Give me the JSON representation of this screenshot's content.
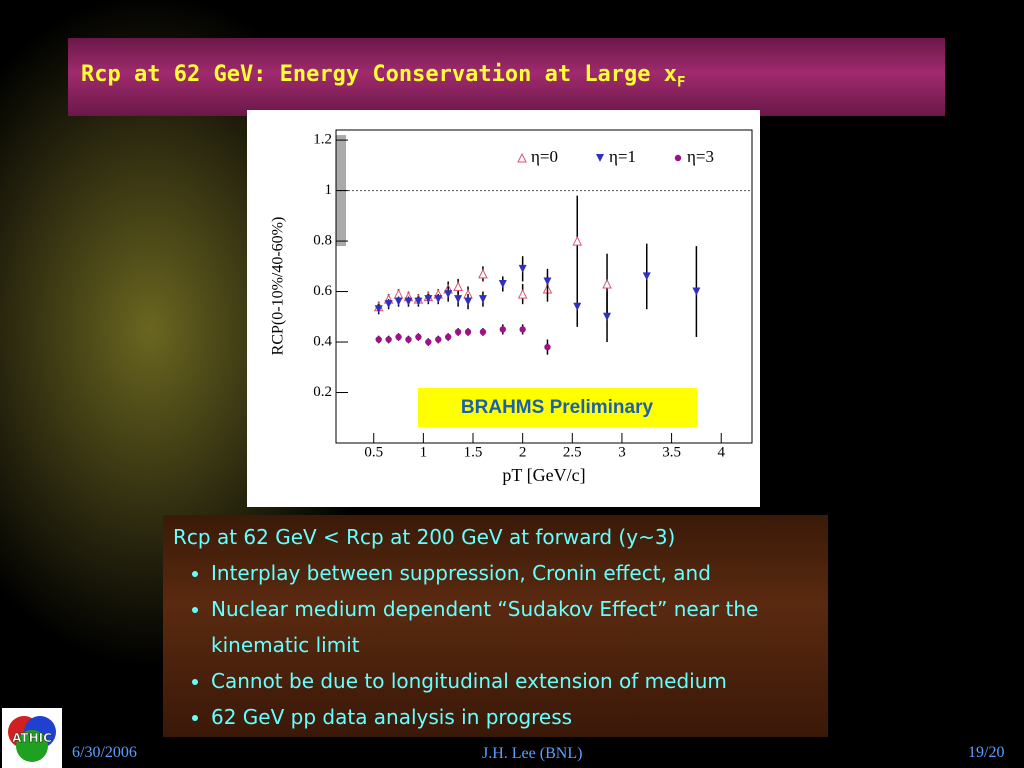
{
  "slide": {
    "title": "Rcp at 62 GeV: Energy Conservation at Large x",
    "title_subscript": "F",
    "intro": "Rcp at 62 GeV <  Rcp at 200 GeV at forward (y~3)",
    "bullets": [
      "Interplay between suppression, Cronin effect, and",
      "Nuclear medium dependent “Sudakov Effect” near the kinematic limit",
      "Cannot be due to longitudinal extension of medium",
      "62 GeV pp data analysis in progress"
    ],
    "footer_date": "6/30/2006",
    "footer_author": "J.H. Lee (BNL)",
    "footer_page": "19/20",
    "logo_text": "ATHIC"
  },
  "chart_data": {
    "type": "scatter",
    "x_label": "pT [GeV/c]",
    "y_label": "RCP(0-10%/40-60%)",
    "annotation": "BRAHMS Preliminary",
    "xlim": [
      0.12,
      4.31
    ],
    "ylim": [
      0,
      1.24
    ],
    "xticks": [
      0.5,
      1,
      1.5,
      2,
      2.5,
      3,
      3.5,
      4
    ],
    "yticks": [
      0.2,
      0.4,
      0.6,
      0.8,
      1,
      1.2
    ],
    "reference_line": 1,
    "norm_band": [
      0.78,
      1.22
    ],
    "legend": "top",
    "series": [
      {
        "name": "η=0",
        "color": "#e05070",
        "marker": "triangle-up-open",
        "x": [
          0.55,
          0.65,
          0.75,
          0.85,
          0.95,
          1.05,
          1.15,
          1.25,
          1.35,
          1.45,
          1.6,
          2.0,
          2.25,
          2.55,
          2.85
        ],
        "values": [
          0.54,
          0.57,
          0.59,
          0.58,
          0.57,
          0.58,
          0.59,
          0.61,
          0.62,
          0.59,
          0.67,
          0.59,
          0.61,
          0.8,
          0.63
        ],
        "errors": [
          0.02,
          0.02,
          0.02,
          0.02,
          0.02,
          0.02,
          0.02,
          0.03,
          0.03,
          0.03,
          0.03,
          0.04,
          0.05,
          0.18,
          0.12
        ]
      },
      {
        "name": "η=1",
        "color": "#3030c0",
        "marker": "triangle-down",
        "x": [
          0.55,
          0.65,
          0.75,
          0.85,
          0.95,
          1.05,
          1.15,
          1.25,
          1.35,
          1.45,
          1.6,
          1.8,
          2.0,
          2.25,
          2.55,
          2.85,
          3.25,
          3.75
        ],
        "values": [
          0.53,
          0.55,
          0.56,
          0.56,
          0.56,
          0.57,
          0.57,
          0.59,
          0.57,
          0.56,
          0.57,
          0.63,
          0.69,
          0.64,
          0.54,
          0.5,
          0.66,
          0.6
        ],
        "errors": [
          0.02,
          0.02,
          0.02,
          0.02,
          0.02,
          0.02,
          0.02,
          0.03,
          0.03,
          0.03,
          0.03,
          0.03,
          0.05,
          0.05,
          0.08,
          0.1,
          0.13,
          0.18
        ]
      },
      {
        "name": "η=3",
        "color": "#a0108a",
        "marker": "circle",
        "x": [
          0.55,
          0.65,
          0.75,
          0.85,
          0.95,
          1.05,
          1.15,
          1.25,
          1.35,
          1.45,
          1.6,
          1.8,
          2.0,
          2.25
        ],
        "values": [
          0.41,
          0.41,
          0.42,
          0.41,
          0.42,
          0.4,
          0.41,
          0.42,
          0.44,
          0.44,
          0.44,
          0.45,
          0.45,
          0.38
        ],
        "errors": [
          0.015,
          0.015,
          0.015,
          0.015,
          0.015,
          0.015,
          0.015,
          0.015,
          0.015,
          0.015,
          0.015,
          0.02,
          0.02,
          0.03
        ]
      }
    ]
  }
}
